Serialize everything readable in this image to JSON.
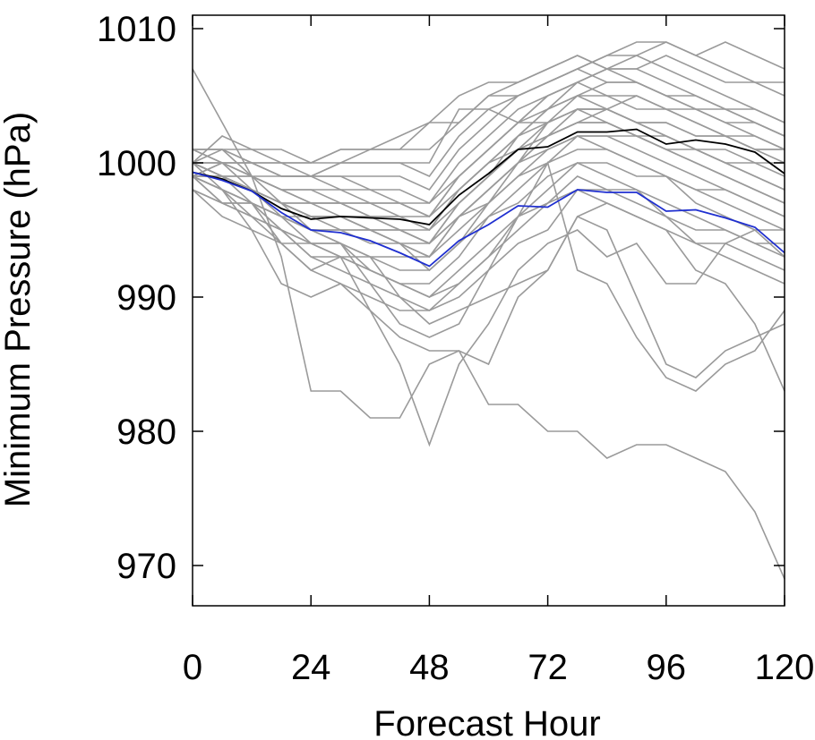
{
  "chart_data": {
    "type": "line",
    "title": "",
    "xlabel": "Forecast Hour",
    "ylabel": "Minimum Pressure (hPa)",
    "xlim": [
      0,
      120
    ],
    "ylim": [
      967,
      1011
    ],
    "xticks": [
      0,
      24,
      48,
      72,
      96,
      120
    ],
    "yticks": [
      970,
      980,
      990,
      1000,
      1010
    ],
    "grid": false,
    "legend": "none",
    "colors": {
      "ensemble": "#9a9a9a",
      "mean": "#000000",
      "highlight": "#1f2fd0",
      "axis": "#000000"
    },
    "x": [
      0,
      6,
      12,
      18,
      24,
      30,
      36,
      42,
      48,
      54,
      60,
      66,
      72,
      78,
      84,
      90,
      96,
      102,
      108,
      114,
      120
    ],
    "ensemble": [
      [
        1007,
        1003,
        999,
        993,
        983,
        983,
        981,
        981,
        985,
        986,
        982,
        982,
        980,
        980,
        978,
        979,
        979,
        978,
        977,
        974,
        969
      ],
      [
        999,
        998,
        995,
        991,
        990,
        991,
        989,
        985,
        979,
        985,
        988,
        992,
        994,
        995,
        993,
        994,
        991,
        991,
        994,
        995,
        995
      ],
      [
        999,
        997,
        997,
        994,
        992,
        993,
        989,
        987,
        986,
        986,
        985,
        990,
        992,
        996,
        995,
        990,
        985,
        984,
        986,
        987,
        988
      ],
      [
        1000,
        999,
        997,
        996,
        994,
        994,
        991,
        988,
        987,
        988,
        992,
        996,
        1000,
        992,
        991,
        987,
        984,
        983,
        985,
        986,
        989
      ],
      [
        1001,
        1001,
        999,
        997,
        995,
        994,
        993,
        990,
        988,
        989,
        990,
        991,
        992,
        996,
        997,
        996,
        995,
        992,
        991,
        988,
        983
      ],
      [
        1000,
        999,
        998,
        996,
        995,
        994,
        992,
        991,
        990,
        992,
        994,
        996,
        998,
        1000,
        999,
        998,
        996,
        994,
        994,
        993,
        992
      ],
      [
        998,
        996,
        995,
        994,
        994,
        993,
        992,
        991,
        991,
        993,
        996,
        998,
        1000,
        1002,
        1001,
        1000,
        999,
        998,
        997,
        996,
        995
      ],
      [
        999,
        998,
        997,
        995,
        994,
        993,
        993,
        992,
        992,
        994,
        997,
        1000,
        1002,
        1004,
        1003,
        1002,
        1001,
        1000,
        999,
        998,
        997
      ],
      [
        999,
        999,
        998,
        997,
        996,
        996,
        995,
        994,
        993,
        996,
        998,
        1000,
        1003,
        1005,
        1004,
        1003,
        1002,
        1001,
        1000,
        999,
        998
      ],
      [
        1000,
        999,
        998,
        997,
        997,
        996,
        996,
        995,
        994,
        997,
        999,
        1001,
        1002,
        1003,
        1004,
        1005,
        1004,
        1003,
        1002,
        1001,
        1000
      ],
      [
        1000,
        1000,
        999,
        998,
        997,
        997,
        997,
        996,
        995,
        998,
        1000,
        1002,
        1004,
        1005,
        1006,
        1006,
        1005,
        1004,
        1003,
        1002,
        1001
      ],
      [
        1001,
        1000,
        999,
        998,
        998,
        998,
        997,
        997,
        996,
        999,
        1001,
        1003,
        1005,
        1006,
        1007,
        1007,
        1006,
        1005,
        1004,
        1003,
        1002
      ],
      [
        999,
        999,
        999,
        999,
        999,
        999,
        998,
        998,
        997,
        1000,
        1002,
        1004,
        1005,
        1006,
        1007,
        1008,
        1007,
        1006,
        1005,
        1004,
        1003
      ],
      [
        1001,
        1001,
        1000,
        1000,
        999,
        999,
        999,
        999,
        998,
        1001,
        1003,
        1005,
        1006,
        1007,
        1008,
        1008,
        1009,
        1008,
        1007,
        1006,
        1005
      ],
      [
        1000,
        1000,
        1000,
        1000,
        1000,
        1000,
        1000,
        1000,
        999,
        1002,
        1004,
        1005,
        1006,
        1007,
        1008,
        1009,
        1009,
        1008,
        1009,
        1008,
        1007
      ],
      [
        1001,
        1001,
        1001,
        1001,
        1000,
        1001,
        1001,
        1001,
        1001,
        1003,
        1005,
        1006,
        1007,
        1008,
        1007,
        1007,
        1008,
        1007,
        1006,
        1006,
        1006
      ],
      [
        1000,
        1000,
        1000,
        999,
        999,
        1000,
        1001,
        1001,
        1003,
        1003,
        1005,
        1005,
        1006,
        1007,
        1006,
        1006,
        1005,
        1004,
        1004,
        1003,
        1002
      ],
      [
        999,
        1000,
        1000,
        999,
        999,
        1000,
        1000,
        1000,
        1000,
        1004,
        1004,
        1003,
        1003,
        1004,
        1004,
        1003,
        1003,
        1002,
        1002,
        1001,
        1001
      ],
      [
        1000,
        1002,
        1001,
        1000,
        1000,
        1001,
        1001,
        1002,
        1003,
        1005,
        1006,
        1006,
        1007,
        1008,
        1007,
        1006,
        1005,
        1005,
        1004,
        1004,
        1003
      ],
      [
        998,
        997,
        996,
        995,
        994,
        994,
        993,
        993,
        993,
        996,
        997,
        999,
        1000,
        1001,
        1001,
        1000,
        999,
        997,
        996,
        995,
        993
      ],
      [
        999,
        997,
        996,
        994,
        992,
        991,
        990,
        989,
        989,
        991,
        993,
        996,
        997,
        998,
        998,
        997,
        996,
        995,
        995,
        994,
        994
      ],
      [
        1000,
        998,
        997,
        995,
        993,
        992,
        991,
        990,
        989,
        990,
        992,
        994,
        995,
        998,
        997,
        996,
        995,
        994,
        993,
        992,
        991
      ],
      [
        999,
        998,
        996,
        995,
        993,
        993,
        992,
        991,
        990,
        991,
        993,
        995,
        997,
        999,
        998,
        998,
        997,
        996,
        995,
        994,
        993
      ],
      [
        1001,
        1000,
        998,
        997,
        996,
        996,
        995,
        995,
        994,
        996,
        998,
        1000,
        1001,
        1002,
        1002,
        1001,
        1000,
        999,
        998,
        997,
        996
      ],
      [
        1000,
        999,
        998,
        997,
        996,
        995,
        995,
        994,
        994,
        996,
        998,
        1000,
        1002,
        1003,
        1003,
        1002,
        1001,
        1000,
        999,
        998,
        997
      ],
      [
        999,
        1000,
        999,
        998,
        997,
        997,
        996,
        996,
        995,
        998,
        1000,
        1002,
        1003,
        1004,
        1004,
        1003,
        1002,
        1001,
        1000,
        999,
        998
      ],
      [
        1000,
        1001,
        1000,
        999,
        999,
        998,
        998,
        997,
        997,
        999,
        1001,
        1003,
        1005,
        1006,
        1005,
        1004,
        1004,
        1003,
        1002,
        1002,
        1001
      ],
      [
        998,
        997,
        997,
        996,
        995,
        995,
        994,
        994,
        993,
        995,
        997,
        999,
        1001,
        1002,
        1002,
        1002,
        1001,
        1001,
        1000,
        1000,
        999
      ],
      [
        999,
        998,
        997,
        996,
        995,
        995,
        995,
        994,
        992,
        994,
        996,
        997,
        999,
        1000,
        1000,
        999,
        999,
        998,
        998,
        997,
        996
      ],
      [
        1000,
        999,
        999,
        998,
        998,
        997,
        997,
        997,
        996,
        998,
        1000,
        1001,
        1003,
        1004,
        1004,
        1003,
        1003,
        1002,
        1002,
        1001,
        1001
      ],
      [
        999,
        999,
        998,
        997,
        997,
        997,
        996,
        996,
        996,
        999,
        1001,
        1003,
        1004,
        1005,
        1005,
        1005,
        1004,
        1004,
        1003,
        1003,
        1002
      ],
      [
        1000,
        999,
        998,
        997,
        996,
        996,
        996,
        995,
        995,
        997,
        999,
        1001,
        1002,
        1003,
        1003,
        1002,
        1002,
        1001,
        1001,
        1000,
        1000
      ],
      [
        999,
        998,
        997,
        996,
        996,
        996,
        995,
        995,
        994,
        997,
        999,
        1002,
        1004,
        1006,
        null,
        null,
        null,
        null,
        null,
        null,
        null
      ]
    ],
    "mean": [
      999.3,
      998.8,
      997.9,
      996.6,
      995.8,
      996.0,
      995.9,
      995.8,
      995.4,
      997.6,
      999.2,
      1001.0,
      1001.2,
      1002.3,
      1002.3,
      1002.5,
      1001.4,
      1001.7,
      1001.4,
      1000.8,
      999.2
    ],
    "highlight": [
      999.3,
      998.7,
      997.9,
      996.3,
      995.0,
      994.8,
      994.2,
      993.3,
      992.3,
      994.2,
      995.4,
      996.8,
      996.7,
      998.0,
      997.8,
      997.8,
      996.4,
      996.5,
      995.9,
      995.2,
      993.3
    ]
  }
}
